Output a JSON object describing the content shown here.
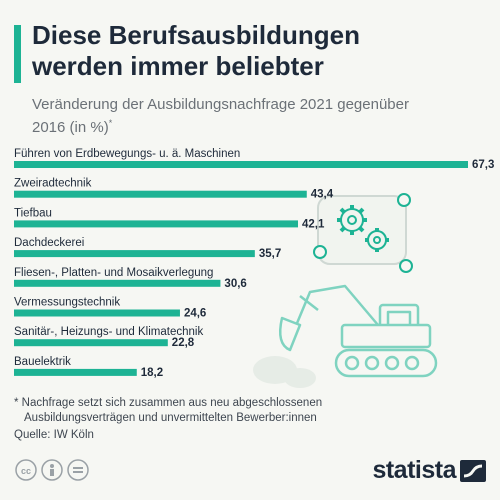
{
  "header": {
    "title": "Diese Berufsausbildungen werden immer beliebter",
    "subtitle": "Veränderung der Ausbildungsnachfrage 2021 gegenüber 2016 (in %)",
    "subtitle_mark": "*"
  },
  "chart_data": {
    "type": "bar",
    "orientation": "horizontal",
    "categories": [
      "Führen von Erdbewegungs- u. ä. Maschinen",
      "Zweiradtechnik",
      "Tiefbau",
      "Dachdeckerei",
      "Fliesen-, Platten- und Mosaikverlegung",
      "Vermessungstechnik",
      "Sanitär-, Heizungs- und Klimatechnik",
      "Bauelektrik"
    ],
    "values": [
      67.3,
      43.4,
      42.1,
      35.7,
      30.6,
      24.6,
      22.8,
      18.2
    ],
    "value_labels": [
      "67,3",
      "43,4",
      "42,1",
      "35,7",
      "30,6",
      "24,6",
      "22,8",
      "18,2"
    ],
    "bar_color": "#1db394",
    "xlim": [
      0,
      67.3
    ],
    "grid": false,
    "legend": "none"
  },
  "footnote": {
    "line1": "* Nachfrage setzt sich zusammen aus neu abgeschlossenen",
    "line2": "Ausbildungsverträgen und unvermittelten Bewerber:innen"
  },
  "source": "Quelle: IW Köln",
  "brand": {
    "name": "statista"
  },
  "icons": [
    "cc-icon",
    "person-icon",
    "equals-icon",
    "statista-logo-icon",
    "gears-icon",
    "excavator-icon"
  ],
  "colors": {
    "accent": "#1db394",
    "text": "#1e2a3a",
    "muted": "#6b7177",
    "background": "#f6f7f3"
  }
}
